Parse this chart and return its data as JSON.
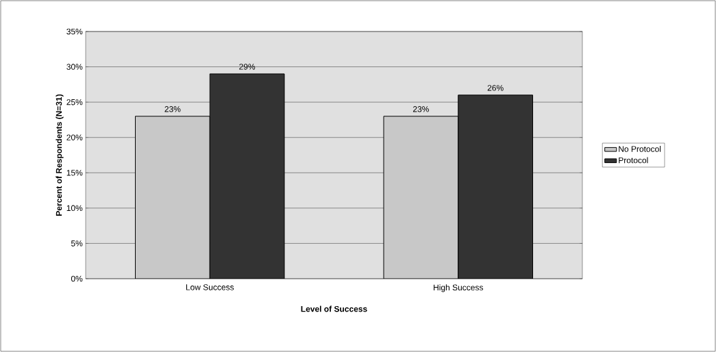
{
  "chart_data": {
    "type": "bar",
    "categories": [
      "Low Success",
      "High Success"
    ],
    "xlabel": "Level of Success",
    "ylabel": "Percent of Respondents (N=31)",
    "series": [
      {
        "name": "No Protocol",
        "color": "#c8c8c8",
        "values": [
          23,
          23
        ],
        "value_labels": [
          "23%",
          "23%"
        ]
      },
      {
        "name": "Protocol",
        "color": "#333333",
        "values": [
          29,
          26
        ],
        "value_labels": [
          "29%",
          "26%"
        ]
      }
    ],
    "ylim": [
      0,
      35
    ],
    "yticks": [
      {
        "value": 0,
        "label": "0%"
      },
      {
        "value": 5,
        "label": "5%"
      },
      {
        "value": 10,
        "label": "10%"
      },
      {
        "value": 15,
        "label": "15%"
      },
      {
        "value": 20,
        "label": "20%"
      },
      {
        "value": 25,
        "label": "25%"
      },
      {
        "value": 30,
        "label": "30%"
      },
      {
        "value": 35,
        "label": "35%"
      }
    ],
    "grid": "y",
    "legend": "right"
  }
}
